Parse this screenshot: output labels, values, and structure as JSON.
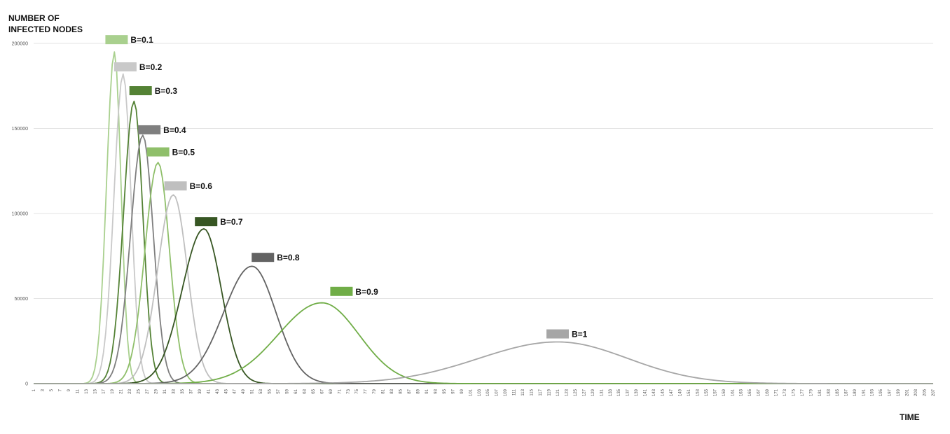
{
  "chart_data": {
    "type": "line",
    "ylabel": "NUMBER OF INFECTED NODES",
    "ylabel_lines": [
      "NUMBER OF",
      "INFECTED NODES"
    ],
    "xlabel": "TIME",
    "xlim": [
      1,
      207
    ],
    "ylim": [
      0,
      200000
    ],
    "yticks": [
      0,
      50000,
      100000,
      150000,
      200000
    ],
    "xticks_step": 2,
    "grid": true,
    "legend_placement": "labels at curve peaks",
    "series": [
      {
        "name": "B=0.1",
        "color": "#a9d08e",
        "peak_x": 19.5,
        "peak_y": 195000,
        "sigma_left": 1.8,
        "sigma_right": 1.5,
        "label": "B=0.1",
        "label_at": [
          20,
          202000
        ]
      },
      {
        "name": "B=0.2",
        "color": "#c9c9c9",
        "peak_x": 21.5,
        "peak_y": 182000,
        "sigma_left": 2.1,
        "sigma_right": 1.8,
        "label": "B=0.2",
        "label_at": [
          22,
          186000
        ]
      },
      {
        "name": "B=0.3",
        "color": "#548235",
        "peak_x": 24,
        "peak_y": 166000,
        "sigma_left": 2.4,
        "sigma_right": 2.0,
        "label": "B=0.3",
        "label_at": [
          25.5,
          172000
        ]
      },
      {
        "name": "B=0.4",
        "color": "#7f7f7f",
        "peak_x": 26,
        "peak_y": 146000,
        "sigma_left": 2.8,
        "sigma_right": 2.4,
        "label": "B=0.4",
        "label_at": [
          27.5,
          149000
        ]
      },
      {
        "name": "B=0.5",
        "color": "#8fbf6a",
        "peak_x": 29.5,
        "peak_y": 130000,
        "sigma_left": 3.0,
        "sigma_right": 2.6,
        "label": "B=0.5",
        "label_at": [
          29.5,
          136000
        ]
      },
      {
        "name": "B=0.6",
        "color": "#bfbfbf",
        "peak_x": 33,
        "peak_y": 111000,
        "sigma_left": 3.6,
        "sigma_right": 3.2,
        "label": "B=0.6",
        "label_at": [
          33.5,
          116000
        ]
      },
      {
        "name": "B=0.7",
        "color": "#375623",
        "peak_x": 40,
        "peak_y": 91000,
        "sigma_left": 5.0,
        "sigma_right": 4.0,
        "label": "B=0.7",
        "label_at": [
          40.5,
          95000
        ]
      },
      {
        "name": "B=0.8",
        "color": "#636363",
        "peak_x": 51,
        "peak_y": 69000,
        "sigma_left": 6.5,
        "sigma_right": 5.5,
        "label": "B=0.8",
        "label_at": [
          53.5,
          74000
        ]
      },
      {
        "name": "B=0.9",
        "color": "#70ad47",
        "peak_x": 67,
        "peak_y": 47500,
        "sigma_left": 10.0,
        "sigma_right": 8.5,
        "label": "B=0.9",
        "label_at": [
          71.5,
          54000
        ]
      },
      {
        "name": "B=1",
        "color": "#a6a6a6",
        "peak_x": 121,
        "peak_y": 24500,
        "sigma_left": 18.0,
        "sigma_right": 16.0,
        "label": "B=1",
        "label_at": [
          121,
          29000
        ]
      }
    ]
  }
}
